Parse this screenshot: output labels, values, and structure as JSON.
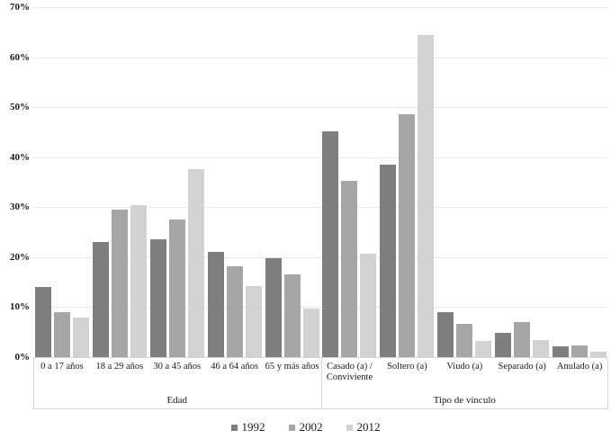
{
  "chart_data": {
    "type": "bar",
    "title": "",
    "xlabel": "",
    "ylabel": "",
    "ylim": [
      0,
      70
    ],
    "ytick_labels": [
      "0%",
      "10%",
      "20%",
      "30%",
      "40%",
      "50%",
      "60%",
      "70%"
    ],
    "grid": true,
    "legend_position": "bottom-center",
    "groups": [
      {
        "label": "Edad",
        "categories": [
          "0 a 17 años",
          "18 a 29 años",
          "30 a 45 años",
          "46 a 64 años",
          "65 y más años"
        ]
      },
      {
        "label": "Tipo de vínculo",
        "categories": [
          "Casado (a) / Conviviente",
          "Soltero (a)",
          "Viudo (a)",
          "Separado (a)",
          "Anulado (a)"
        ]
      }
    ],
    "series": [
      {
        "name": "1992",
        "color": "#7f7f7f",
        "values": [
          14.0,
          23.1,
          23.5,
          21.0,
          19.8,
          45.1,
          38.6,
          9.0,
          4.8,
          2.1
        ]
      },
      {
        "name": "2002",
        "color": "#a6a6a6",
        "values": [
          9.0,
          29.6,
          27.5,
          18.2,
          16.6,
          35.3,
          48.5,
          6.6,
          7.0,
          2.3
        ]
      },
      {
        "name": "2012",
        "color": "#d2d2d2",
        "values": [
          7.9,
          30.4,
          37.7,
          14.3,
          9.7,
          20.7,
          64.5,
          3.2,
          3.5,
          1.1
        ]
      }
    ]
  },
  "colors": {
    "background": "#ffffff",
    "gridline": "#e9e9e9",
    "axis_line": "#d6d6d6",
    "text": "#1a1a1a"
  }
}
